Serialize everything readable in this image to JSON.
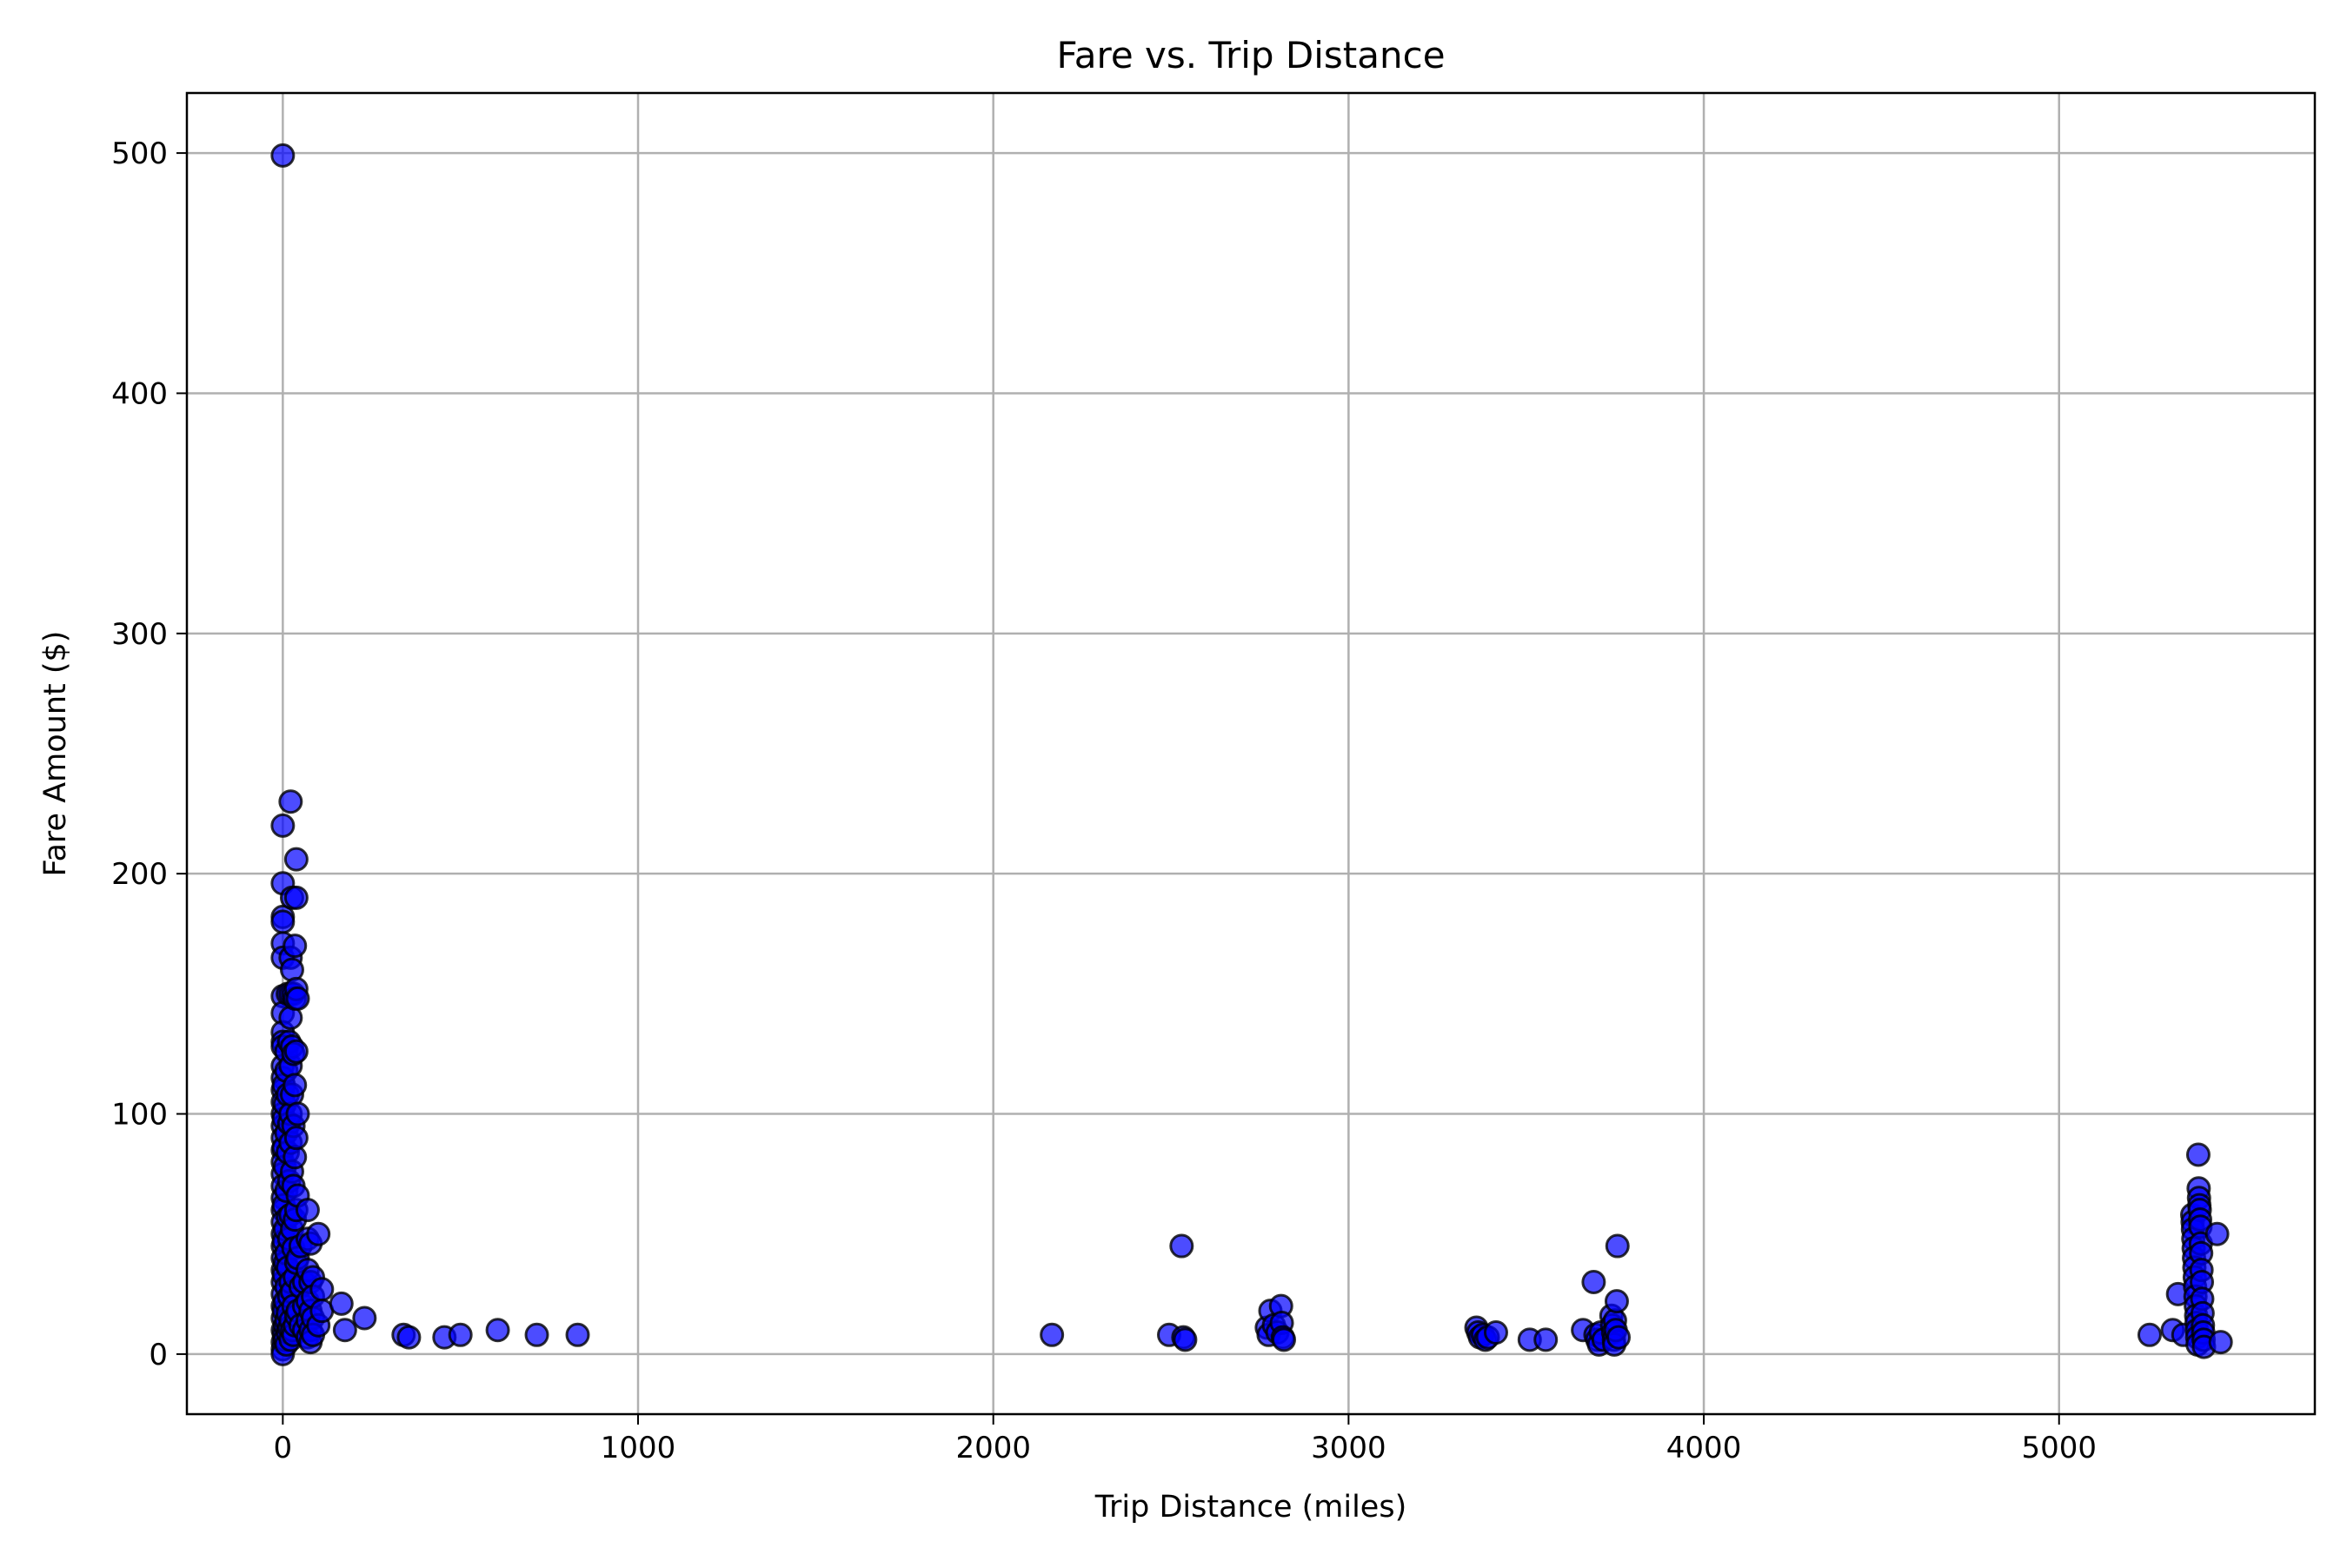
{
  "chart_data": {
    "type": "scatter",
    "title": "Fare vs. Trip Distance",
    "xlabel": "Trip Distance (miles)",
    "ylabel": "Fare Amount ($)",
    "xlim": [
      -270,
      5720
    ],
    "ylim": [
      -25,
      525
    ],
    "xticks": [
      0,
      1000,
      2000,
      3000,
      4000,
      5000
    ],
    "yticks": [
      0,
      100,
      200,
      300,
      400,
      500
    ],
    "grid": true,
    "legend": "none",
    "marker_color": "#0000ff",
    "marker_edge_color": "#000000",
    "marker_alpha": 0.7,
    "series": [
      {
        "points": [
          [
            0,
            499
          ],
          [
            0,
            220
          ],
          [
            0,
            196
          ],
          [
            0,
            182
          ],
          [
            0,
            180
          ],
          [
            0,
            171
          ],
          [
            0,
            165
          ],
          [
            0,
            149
          ],
          [
            0,
            142
          ],
          [
            0,
            134
          ],
          [
            0,
            130
          ],
          [
            0,
            128
          ],
          [
            0,
            120
          ],
          [
            0,
            115
          ],
          [
            0,
            110
          ],
          [
            0,
            105
          ],
          [
            0,
            100
          ],
          [
            0,
            95
          ],
          [
            0,
            90
          ],
          [
            0,
            85
          ],
          [
            0,
            80
          ],
          [
            0,
            75
          ],
          [
            0,
            70
          ],
          [
            0,
            65
          ],
          [
            0,
            60
          ],
          [
            0,
            55
          ],
          [
            0,
            50
          ],
          [
            0,
            45
          ],
          [
            0,
            40
          ],
          [
            0,
            35
          ],
          [
            0,
            30
          ],
          [
            0,
            25
          ],
          [
            0,
            20
          ],
          [
            0,
            15
          ],
          [
            0,
            10
          ],
          [
            0,
            5
          ],
          [
            0,
            2
          ],
          [
            0,
            0
          ],
          [
            3,
            112
          ],
          [
            3,
            98
          ],
          [
            3,
            86
          ],
          [
            3,
            62
          ],
          [
            3,
            47
          ],
          [
            3,
            33
          ],
          [
            3,
            18
          ],
          [
            3,
            8
          ],
          [
            6,
            104
          ],
          [
            6,
            78
          ],
          [
            6,
            52
          ],
          [
            6,
            38
          ],
          [
            6,
            22
          ],
          [
            6,
            12
          ],
          [
            6,
            6
          ],
          [
            10,
            126
          ],
          [
            10,
            118
          ],
          [
            10,
            92
          ],
          [
            10,
            68
          ],
          [
            10,
            42
          ],
          [
            10,
            28
          ],
          [
            10,
            14
          ],
          [
            10,
            4
          ],
          [
            14,
            150
          ],
          [
            14,
            108
          ],
          [
            14,
            84
          ],
          [
            14,
            57
          ],
          [
            14,
            36
          ],
          [
            14,
            17
          ],
          [
            14,
            9
          ],
          [
            18,
            130
          ],
          [
            18,
            96
          ],
          [
            18,
            72
          ],
          [
            18,
            48
          ],
          [
            18,
            24
          ],
          [
            18,
            11
          ],
          [
            22,
            230
          ],
          [
            22,
            165
          ],
          [
            22,
            150
          ],
          [
            22,
            140
          ],
          [
            22,
            120
          ],
          [
            22,
            100
          ],
          [
            22,
            88
          ],
          [
            22,
            58
          ],
          [
            22,
            30
          ],
          [
            22,
            14
          ],
          [
            22,
            6
          ],
          [
            26,
            190
          ],
          [
            26,
            160
          ],
          [
            26,
            128
          ],
          [
            26,
            108
          ],
          [
            26,
            76
          ],
          [
            26,
            52
          ],
          [
            26,
            26
          ],
          [
            26,
            10
          ],
          [
            30,
            150
          ],
          [
            30,
            125
          ],
          [
            30,
            95
          ],
          [
            30,
            70
          ],
          [
            30,
            44
          ],
          [
            30,
            20
          ],
          [
            30,
            8
          ],
          [
            34,
            170
          ],
          [
            34,
            148
          ],
          [
            34,
            112
          ],
          [
            34,
            82
          ],
          [
            34,
            56
          ],
          [
            34,
            32
          ],
          [
            34,
            12
          ],
          [
            38,
            206
          ],
          [
            38,
            190
          ],
          [
            38,
            152
          ],
          [
            38,
            126
          ],
          [
            38,
            90
          ],
          [
            38,
            60
          ],
          [
            38,
            38
          ],
          [
            38,
            16
          ],
          [
            42,
            148
          ],
          [
            42,
            100
          ],
          [
            42,
            66
          ],
          [
            42,
            40
          ],
          [
            42,
            18
          ],
          [
            50,
            45
          ],
          [
            50,
            28
          ],
          [
            50,
            12
          ],
          [
            60,
            30
          ],
          [
            60,
            20
          ],
          [
            60,
            10
          ],
          [
            70,
            60
          ],
          [
            70,
            48
          ],
          [
            70,
            35
          ],
          [
            70,
            22
          ],
          [
            70,
            14
          ],
          [
            70,
            7
          ],
          [
            78,
            46
          ],
          [
            78,
            30
          ],
          [
            78,
            18
          ],
          [
            78,
            10
          ],
          [
            78,
            5
          ],
          [
            85,
            32
          ],
          [
            85,
            24
          ],
          [
            85,
            15
          ],
          [
            85,
            8
          ],
          [
            100,
            50
          ],
          [
            100,
            12
          ],
          [
            110,
            27
          ],
          [
            110,
            18
          ],
          [
            165,
            21
          ],
          [
            175,
            10
          ],
          [
            230,
            15
          ],
          [
            340,
            8
          ],
          [
            355,
            7
          ],
          [
            455,
            7
          ],
          [
            500,
            8
          ],
          [
            605,
            10
          ],
          [
            715,
            8
          ],
          [
            830,
            8
          ],
          [
            2165,
            8
          ],
          [
            2495,
            8
          ],
          [
            2530,
            45
          ],
          [
            2535,
            7
          ],
          [
            2540,
            6
          ],
          [
            2770,
            11
          ],
          [
            2775,
            8
          ],
          [
            2780,
            18
          ],
          [
            2790,
            12
          ],
          [
            2800,
            9
          ],
          [
            2810,
            20
          ],
          [
            2812,
            13
          ],
          [
            2815,
            7
          ],
          [
            2818,
            6
          ],
          [
            3360,
            11
          ],
          [
            3365,
            9
          ],
          [
            3370,
            7
          ],
          [
            3378,
            8
          ],
          [
            3385,
            6
          ],
          [
            3392,
            7
          ],
          [
            3415,
            9
          ],
          [
            3510,
            6
          ],
          [
            3555,
            6
          ],
          [
            3660,
            10
          ],
          [
            3690,
            30
          ],
          [
            3695,
            8
          ],
          [
            3700,
            6
          ],
          [
            3705,
            4
          ],
          [
            3710,
            9
          ],
          [
            3718,
            6
          ],
          [
            3740,
            16
          ],
          [
            3742,
            12
          ],
          [
            3745,
            9
          ],
          [
            3747,
            6
          ],
          [
            3748,
            4
          ],
          [
            3750,
            14
          ],
          [
            3752,
            10
          ],
          [
            3755,
            22
          ],
          [
            3757,
            45
          ],
          [
            3760,
            7
          ],
          [
            5255,
            8
          ],
          [
            5320,
            10
          ],
          [
            5335,
            25
          ],
          [
            5350,
            8
          ],
          [
            5375,
            58
          ],
          [
            5376,
            55
          ],
          [
            5377,
            52
          ],
          [
            5378,
            48
          ],
          [
            5379,
            44
          ],
          [
            5380,
            40
          ],
          [
            5381,
            36
          ],
          [
            5382,
            32
          ],
          [
            5383,
            28
          ],
          [
            5384,
            24
          ],
          [
            5385,
            20
          ],
          [
            5386,
            16
          ],
          [
            5387,
            13
          ],
          [
            5388,
            10
          ],
          [
            5389,
            7
          ],
          [
            5390,
            4
          ],
          [
            5392,
            83
          ],
          [
            5393,
            69
          ],
          [
            5394,
            65
          ],
          [
            5395,
            62
          ],
          [
            5396,
            60
          ],
          [
            5397,
            56
          ],
          [
            5398,
            53
          ],
          [
            5399,
            46
          ],
          [
            5400,
            42
          ],
          [
            5401,
            35
          ],
          [
            5402,
            30
          ],
          [
            5403,
            23
          ],
          [
            5404,
            17
          ],
          [
            5405,
            12
          ],
          [
            5406,
            9
          ],
          [
            5407,
            6
          ],
          [
            5408,
            3
          ],
          [
            5445,
            50
          ],
          [
            5455,
            5
          ]
        ]
      }
    ]
  }
}
